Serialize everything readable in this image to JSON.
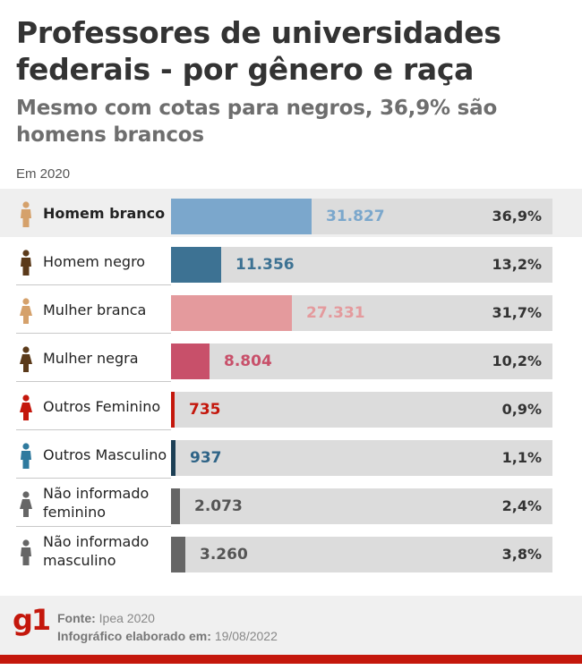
{
  "header": {
    "title": "Professores de universidades federais - por gênero e raça",
    "subtitle": "Mesmo com cotas para negros, 36,9% são homens brancos",
    "year": "Em 2020"
  },
  "chart_data": {
    "type": "bar",
    "orientation": "horizontal",
    "title": "Professores de universidades federais - por gênero e raça",
    "subtitle": "Mesmo com cotas para negros, 36,9% são homens brancos",
    "note": "Em 2020",
    "xlim": [
      0,
      86310
    ],
    "rows": [
      {
        "label": "Homem branco",
        "value": 31827,
        "value_label": "31.827",
        "percent": 36.9,
        "percent_label": "36,9%",
        "color": "#7ba7cc",
        "text_color": "#7ba7cc",
        "icon_color": "#d5a16b",
        "highlight": true
      },
      {
        "label": "Homem negro",
        "value": 11356,
        "value_label": "11.356",
        "percent": 13.2,
        "percent_label": "13,2%",
        "color": "#3d7293",
        "text_color": "#3d7293",
        "icon_color": "#5b3a1a",
        "highlight": false
      },
      {
        "label": "Mulher branca",
        "value": 27331,
        "value_label": "27.331",
        "percent": 31.7,
        "percent_label": "31,7%",
        "color": "#e49a9d",
        "text_color": "#e49a9d",
        "icon_color": "#d5a16b",
        "highlight": false
      },
      {
        "label": "Mulher negra",
        "value": 8804,
        "value_label": "8.804",
        "percent": 10.2,
        "percent_label": "10,2%",
        "color": "#c8506a",
        "text_color": "#c8506a",
        "icon_color": "#5b3a1a",
        "highlight": false
      },
      {
        "label": "Outros Feminino",
        "value": 735,
        "value_label": "735",
        "percent": 0.9,
        "percent_label": "0,9%",
        "color": "#c4170c",
        "text_color": "#c4170c",
        "icon_color": "#c4170c",
        "highlight": false
      },
      {
        "label": "Outros Masculino",
        "value": 937,
        "value_label": "937",
        "percent": 1.1,
        "percent_label": "1,1%",
        "color": "#1c3f55",
        "text_color": "#2f6487",
        "icon_color": "#2f7a9e",
        "highlight": false
      },
      {
        "label": "Não informado feminino",
        "value": 2073,
        "value_label": "2.073",
        "percent": 2.4,
        "percent_label": "2,4%",
        "color": "#666666",
        "text_color": "#555555",
        "icon_color": "#666666",
        "highlight": false
      },
      {
        "label": "Não informado masculino",
        "value": 3260,
        "value_label": "3.260",
        "percent": 3.8,
        "percent_label": "3,8%",
        "color": "#666666",
        "text_color": "#555555",
        "icon_color": "#666666",
        "highlight": false
      }
    ]
  },
  "footer": {
    "logo": "g1",
    "source_label": "Fonte:",
    "source_value": "Ipea 2020",
    "made_label": "Infográfico elaborado em:",
    "made_value": "19/08/2022",
    "accent_color": "#c4170c"
  }
}
